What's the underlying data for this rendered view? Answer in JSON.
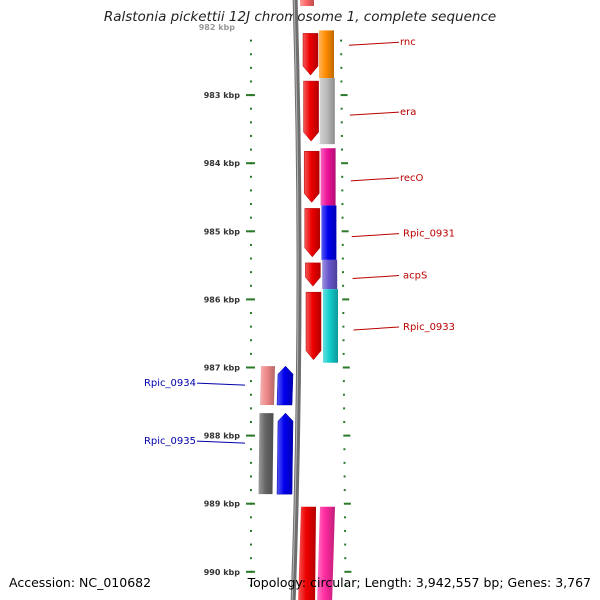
{
  "title": "Ralstonia pickettii 12J chromosome 1, complete sequence",
  "footer": {
    "accession_label": "Accession: NC_010682",
    "info": "Topology: circular; Length: 3,942,557 bp; Genes: 3,767"
  },
  "colors": {
    "backbone": "#6e6e6e",
    "tick": "#2a7a2a",
    "label_forward": "#bb0000",
    "label_reverse": "#0000aa"
  },
  "scale": {
    "unit": "kbp",
    "top_partial_label": "982 kbp",
    "labels": [
      "983 kbp",
      "984 kbp",
      "985 kbp",
      "986 kbp",
      "987 kbp",
      "988 kbp",
      "989 kbp",
      "990 kbp"
    ]
  },
  "genes_forward": [
    {
      "name": "rnc",
      "start_kbp": 982.05,
      "end_kbp": 982.75,
      "color": "#ff8c00"
    },
    {
      "name": "era",
      "start_kbp": 982.75,
      "end_kbp": 983.72,
      "color": "#bbbbbb"
    },
    {
      "name": "recO",
      "start_kbp": 983.78,
      "end_kbp": 984.62,
      "color": "#ee1199"
    },
    {
      "name": "Rpic_0931",
      "start_kbp": 984.62,
      "end_kbp": 985.42,
      "color": "#0000ee"
    },
    {
      "name": "acpS",
      "start_kbp": 985.42,
      "end_kbp": 985.85,
      "color": "#6655cc"
    },
    {
      "name": "Rpic_0933",
      "start_kbp": 985.85,
      "end_kbp": 986.93,
      "color": "#11cccc"
    }
  ],
  "genes_reverse": [
    {
      "name": "Rpic_0934",
      "start_kbp": 986.98,
      "end_kbp": 987.55,
      "color": "#ee8888"
    },
    {
      "name": "Rpic_0935",
      "start_kbp": 987.67,
      "end_kbp": 988.86,
      "color": "#666666"
    }
  ],
  "genes_unlabeled": [
    {
      "start_kbp": 989.0,
      "end_kbp": 990.4,
      "color": "#ff2aa0"
    }
  ]
}
